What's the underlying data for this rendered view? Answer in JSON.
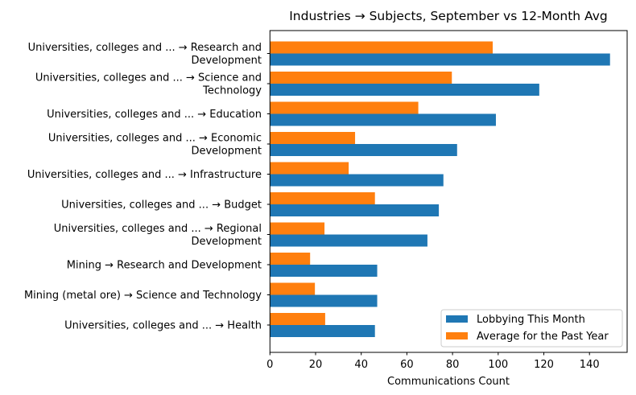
{
  "chart_data": {
    "type": "bar",
    "orientation": "horizontal",
    "title": "Industries → Subjects, September vs 12-Month Avg",
    "xlabel": "Communications Count",
    "ylabel": "",
    "xlim": [
      0,
      156.5
    ],
    "xticks": [
      0,
      20,
      40,
      60,
      80,
      100,
      120,
      140
    ],
    "grid": false,
    "legend_placement": "lower-right",
    "categories": [
      [
        "Universities, colleges and ... → Research and",
        "Development"
      ],
      [
        "Universities, colleges and ... → Science and",
        "Technology"
      ],
      [
        "Universities, colleges and ... → Education"
      ],
      [
        "Universities, colleges and ... → Economic",
        "Development"
      ],
      [
        "Universities, colleges and ... → Infrastructure"
      ],
      [
        "Universities, colleges and ... → Budget"
      ],
      [
        "Universities, colleges and ... → Regional",
        "Development"
      ],
      [
        "Mining → Research and Development"
      ],
      [
        "Mining (metal ore) → Science and Technology"
      ],
      [
        "Universities, colleges and ... → Health"
      ]
    ],
    "series": [
      {
        "name": "Lobbying This Month",
        "color": "#1f77b4",
        "values": [
          149,
          118,
          99,
          82,
          76,
          74,
          69,
          47,
          47,
          46
        ]
      },
      {
        "name": "Average for the Past Year",
        "color": "#ff7f0e",
        "values": [
          97.6,
          79.7,
          65.0,
          37.3,
          34.5,
          46.0,
          23.9,
          17.6,
          19.7,
          24.2
        ]
      }
    ]
  }
}
